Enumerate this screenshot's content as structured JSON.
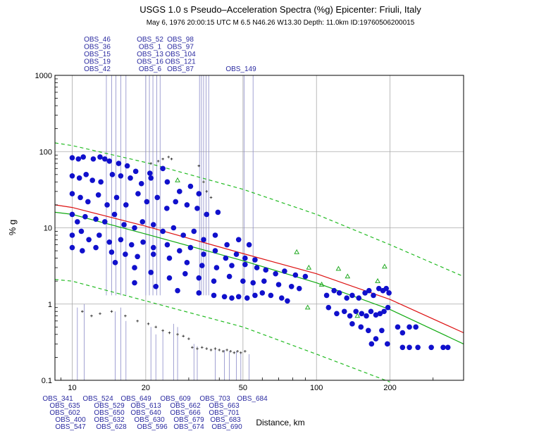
{
  "chart_data": {
    "type": "scatter",
    "title": "USGS 1.0 s Pseudo–Acceleration Spectra (%g) Epicenter: Friuli, Italy",
    "subtitle": "May  6, 1976 20:00:15 UTC   M 6.5   N46.26 W13.30   Depth: 11.0km   ID:19760506200015",
    "xlabel": "Distance, km",
    "ylabel": "% g",
    "xscale": "log",
    "yscale": "log",
    "xlim": [
      8.5,
      400
    ],
    "ylim": [
      0.1,
      1000
    ],
    "grid": true,
    "x_ticks": [
      10,
      20,
      50,
      100,
      200
    ],
    "y_ticks": [
      0.1,
      1,
      10,
      100,
      1000
    ],
    "x_tick_labels": [
      "10",
      "20",
      "50",
      "100",
      "200"
    ],
    "y_tick_labels": [
      "0.1",
      "1",
      "10",
      "100",
      "1000"
    ],
    "colors": {
      "observed": "#1010cc",
      "median": "#dd1111",
      "gmpe": "#11aa11",
      "bounds": "#22bb22",
      "flagged": "#333333",
      "triangle": "#22aa22",
      "obs_line": "#8a8ac8",
      "obs_text": "#2a2aa0"
    },
    "median_curve": [
      [
        8.5,
        20
      ],
      [
        10,
        18.5
      ],
      [
        20,
        10.5
      ],
      [
        50,
        4.6
      ],
      [
        100,
        2.5
      ],
      [
        200,
        1.15
      ],
      [
        400,
        0.42
      ]
    ],
    "gmpe_curve": [
      [
        8.5,
        16
      ],
      [
        10,
        15
      ],
      [
        20,
        8.3
      ],
      [
        50,
        3.7
      ],
      [
        100,
        1.9
      ],
      [
        200,
        0.85
      ],
      [
        400,
        0.3
      ]
    ],
    "upper_bound": [
      [
        8.5,
        130
      ],
      [
        10,
        120
      ],
      [
        20,
        72
      ],
      [
        50,
        32
      ],
      [
        100,
        15
      ],
      [
        200,
        6
      ],
      [
        400,
        2.3
      ]
    ],
    "lower_bound": [
      [
        8.5,
        2.1
      ],
      [
        10,
        2
      ],
      [
        20,
        1.1
      ],
      [
        50,
        0.5
      ],
      [
        100,
        0.22
      ],
      [
        200,
        0.095
      ]
    ],
    "series": [
      {
        "name": "",
        "marker": "circle",
        "color": "#1010cc",
        "points": [
          [
            10.0,
            83
          ],
          [
            10.6,
            80
          ],
          [
            11.1,
            85
          ],
          [
            12.2,
            80
          ],
          [
            13.0,
            85
          ],
          [
            13.6,
            80
          ],
          [
            14.2,
            75
          ],
          [
            15.5,
            70
          ],
          [
            16.8,
            65
          ],
          [
            18.2,
            55
          ],
          [
            20.8,
            52
          ],
          [
            23.5,
            60
          ],
          [
            10.0,
            48
          ],
          [
            10.7,
            45
          ],
          [
            11.4,
            50
          ],
          [
            12.1,
            42
          ],
          [
            13.1,
            40
          ],
          [
            14.6,
            50
          ],
          [
            15.8,
            48
          ],
          [
            17.3,
            45
          ],
          [
            19.2,
            38
          ],
          [
            21.0,
            45
          ],
          [
            24.5,
            40
          ],
          [
            27.5,
            30
          ],
          [
            30.5,
            35
          ],
          [
            33.0,
            28
          ],
          [
            10.0,
            28
          ],
          [
            10.8,
            25
          ],
          [
            11.6,
            22
          ],
          [
            12.8,
            27
          ],
          [
            13.9,
            20
          ],
          [
            15.2,
            25
          ],
          [
            16.6,
            20
          ],
          [
            18.6,
            28
          ],
          [
            20.2,
            22
          ],
          [
            22.3,
            25
          ],
          [
            24.4,
            18
          ],
          [
            26.5,
            22
          ],
          [
            29.5,
            20
          ],
          [
            32.5,
            18
          ],
          [
            35.5,
            15
          ],
          [
            39.5,
            16
          ],
          [
            10.0,
            15
          ],
          [
            10.5,
            12
          ],
          [
            11.3,
            14
          ],
          [
            12.5,
            13
          ],
          [
            13.6,
            12
          ],
          [
            14.9,
            15
          ],
          [
            16.3,
            11
          ],
          [
            18.0,
            10
          ],
          [
            19.4,
            12
          ],
          [
            21.5,
            11
          ],
          [
            23.5,
            9
          ],
          [
            26.0,
            10
          ],
          [
            28.5,
            8
          ],
          [
            31.5,
            9
          ],
          [
            34.5,
            7
          ],
          [
            38.5,
            8
          ],
          [
            43.0,
            6
          ],
          [
            48.0,
            7
          ],
          [
            53.0,
            6
          ],
          [
            10.0,
            8
          ],
          [
            10.9,
            9
          ],
          [
            11.7,
            7
          ],
          [
            12.9,
            8
          ],
          [
            14.2,
            6.5
          ],
          [
            15.8,
            7
          ],
          [
            17.5,
            6
          ],
          [
            19.5,
            6.5
          ],
          [
            21.5,
            5.5
          ],
          [
            24.5,
            6
          ],
          [
            27.5,
            5
          ],
          [
            30.5,
            5.5
          ],
          [
            34.5,
            4.5
          ],
          [
            38.5,
            5
          ],
          [
            42.5,
            4
          ],
          [
            47.0,
            4.5
          ],
          [
            51.0,
            4
          ],
          [
            56.0,
            3.8
          ],
          [
            10.0,
            5.5
          ],
          [
            11.0,
            5
          ],
          [
            12.5,
            5.5
          ],
          [
            14.5,
            4.8
          ],
          [
            16.5,
            4.5
          ],
          [
            18.5,
            4.2
          ],
          [
            21.5,
            4.5
          ],
          [
            25.0,
            4
          ],
          [
            29.5,
            3.5
          ],
          [
            34.0,
            3.2
          ],
          [
            39.0,
            3.0
          ],
          [
            45.0,
            3.2
          ],
          [
            51.0,
            3.3
          ],
          [
            57.0,
            3.0
          ],
          [
            62.0,
            2.8
          ],
          [
            68.0,
            2.5
          ],
          [
            74.0,
            2.7
          ],
          [
            82.0,
            2.4
          ],
          [
            90.0,
            2.3
          ],
          [
            15.0,
            3.5
          ],
          [
            18.0,
            3.0
          ],
          [
            21.0,
            2.6
          ],
          [
            25.0,
            2.2
          ],
          [
            29.0,
            2.5
          ],
          [
            33.0,
            2.2
          ],
          [
            38.0,
            2.0
          ],
          [
            44.0,
            2.3
          ],
          [
            50.0,
            2.0
          ],
          [
            55.0,
            1.9
          ],
          [
            61.0,
            2.0
          ],
          [
            70.0,
            1.8
          ],
          [
            79.0,
            1.7
          ],
          [
            85.0,
            1.6
          ],
          [
            18.0,
            1.9
          ],
          [
            22.0,
            1.7
          ],
          [
            27.0,
            1.5
          ],
          [
            33.0,
            1.4
          ],
          [
            38.0,
            1.3
          ],
          [
            42.0,
            1.25
          ],
          [
            45.0,
            1.2
          ],
          [
            48.0,
            1.25
          ],
          [
            52.0,
            1.2
          ],
          [
            56.0,
            1.3
          ],
          [
            60.0,
            1.4
          ],
          [
            65.0,
            1.3
          ],
          [
            72.0,
            1.2
          ],
          [
            76.0,
            1.1
          ],
          [
            110.0,
            1.3
          ],
          [
            118.0,
            1.5
          ],
          [
            124.0,
            1.4
          ],
          [
            133.0,
            1.2
          ],
          [
            140.0,
            1.3
          ],
          [
            149.0,
            1.2
          ],
          [
            158.0,
            1.4
          ],
          [
            164.0,
            1.5
          ],
          [
            171.0,
            1.3
          ],
          [
            180.0,
            1.6
          ],
          [
            187.0,
            1.5
          ],
          [
            193.0,
            1.6
          ],
          [
            198.0,
            1.4
          ],
          [
            112.0,
            0.9
          ],
          [
            121.0,
            0.75
          ],
          [
            130.0,
            0.8
          ],
          [
            137.0,
            0.7
          ],
          [
            145.0,
            0.8
          ],
          [
            153.0,
            0.75
          ],
          [
            160.0,
            0.7
          ],
          [
            167.0,
            0.8
          ],
          [
            175.0,
            0.72
          ],
          [
            182.0,
            0.75
          ],
          [
            189.0,
            0.8
          ],
          [
            196.0,
            0.9
          ],
          [
            140.0,
            0.55
          ],
          [
            152.0,
            0.5
          ],
          [
            163.0,
            0.45
          ],
          [
            168.0,
            0.3
          ],
          [
            175.0,
            0.35
          ],
          [
            185.0,
            0.45
          ],
          [
            195.0,
            0.3
          ],
          [
            215.0,
            0.5
          ],
          [
            225.0,
            0.42
          ],
          [
            240.0,
            0.5
          ],
          [
            255.0,
            0.5
          ],
          [
            225.0,
            0.27
          ],
          [
            240.0,
            0.27
          ],
          [
            260.0,
            0.27
          ],
          [
            295.0,
            0.27
          ],
          [
            330.0,
            0.27
          ],
          [
            345.0,
            0.27
          ]
        ]
      },
      {
        "name": "",
        "marker": "plus",
        "color": "#333333",
        "points": [
          [
            21.0,
            70
          ],
          [
            22.5,
            75
          ],
          [
            23.5,
            80
          ],
          [
            24.8,
            85
          ],
          [
            25.5,
            80
          ],
          [
            33.0,
            65
          ],
          [
            34.5,
            40
          ],
          [
            35.5,
            30
          ],
          [
            37.0,
            25
          ],
          [
            11.0,
            0.8
          ],
          [
            12.0,
            0.7
          ],
          [
            13.0,
            0.75
          ],
          [
            14.5,
            0.8
          ],
          [
            16.5,
            0.7
          ],
          [
            18.5,
            0.6
          ],
          [
            20.5,
            0.55
          ],
          [
            22.0,
            0.5
          ],
          [
            23.5,
            0.45
          ],
          [
            25.0,
            0.42
          ],
          [
            27.0,
            0.4
          ],
          [
            28.5,
            0.38
          ],
          [
            30.0,
            0.35
          ],
          [
            31.0,
            0.27
          ],
          [
            32.5,
            0.26
          ],
          [
            34.0,
            0.27
          ],
          [
            35.5,
            0.26
          ],
          [
            37.0,
            0.25
          ],
          [
            38.5,
            0.26
          ],
          [
            40.0,
            0.25
          ],
          [
            41.5,
            0.24
          ],
          [
            43.0,
            0.25
          ],
          [
            44.5,
            0.24
          ],
          [
            46.0,
            0.23
          ],
          [
            47.5,
            0.24
          ],
          [
            49.0,
            0.23
          ],
          [
            51.0,
            0.24
          ]
        ]
      },
      {
        "name": "",
        "marker": "triangle",
        "color": "#22aa22",
        "points": [
          [
            27.0,
            42
          ],
          [
            83.0,
            4.8
          ],
          [
            93.0,
            3.0
          ],
          [
            105.0,
            1.8
          ],
          [
            123.0,
            2.9
          ],
          [
            134.0,
            2.3
          ],
          [
            178.0,
            2.0
          ],
          [
            190.0,
            3.1
          ],
          [
            92.0,
            0.9
          ],
          [
            147.0,
            0.7
          ]
        ]
      }
    ],
    "stations_top": {
      "rows": [
        [
          "OBS_46",
          "OBS_52",
          "OBS_98"
        ],
        [
          "OBS_36",
          "OBS_1",
          "OBS_97"
        ],
        [
          "OBS_15",
          "OBS_13",
          "OBS_104"
        ],
        [
          "OBS_19",
          "OBS_16",
          "OBS_121"
        ],
        [
          "OBS_42",
          "OBS_6",
          "OBS_87",
          "OBS_149"
        ]
      ],
      "lines_x": [
        13.8,
        14.5,
        15.1,
        15.8,
        16.6,
        20.0,
        20.7,
        21.4,
        22.2,
        22.9,
        33.2,
        33.8,
        34.5,
        35.3,
        36.2,
        50.5,
        55.0
      ]
    },
    "stations_bottom": {
      "rows": [
        [
          "OBS_341",
          "OBS_524",
          "OBS_649",
          "OBS_609",
          "OBS_703",
          "OBS_684"
        ],
        [
          "OBS_635",
          "OBS_529",
          "OBS_613",
          "OBS_662",
          "OBS_663"
        ],
        [
          "OBS_602",
          "OBS_650",
          "OBS_640",
          "OBS_666",
          "OBS_701"
        ],
        [
          "OBS_400",
          "OBS_632",
          "OBS_630",
          "OBS_679",
          "OBS_683"
        ],
        [
          "OBS_547",
          "OBS_628",
          "OBS_596",
          "OBS_674",
          "OBS_690"
        ]
      ],
      "lines": [
        [
          10.5,
          0.9
        ],
        [
          11.2,
          1.0
        ],
        [
          15.0,
          0.8
        ],
        [
          15.8,
          0.9
        ],
        [
          16.6,
          0.6
        ],
        [
          21.0,
          0.5
        ],
        [
          22.0,
          0.4
        ],
        [
          23.5,
          0.45
        ],
        [
          26.0,
          0.55
        ],
        [
          27.0,
          0.5
        ],
        [
          31.5,
          0.3
        ],
        [
          32.5,
          0.28
        ],
        [
          38.5,
          0.26
        ],
        [
          42.0,
          0.25
        ],
        [
          44.0,
          0.24
        ],
        [
          47.0,
          0.24
        ],
        [
          49.0,
          0.23
        ],
        [
          53.0,
          0.22
        ]
      ]
    }
  }
}
